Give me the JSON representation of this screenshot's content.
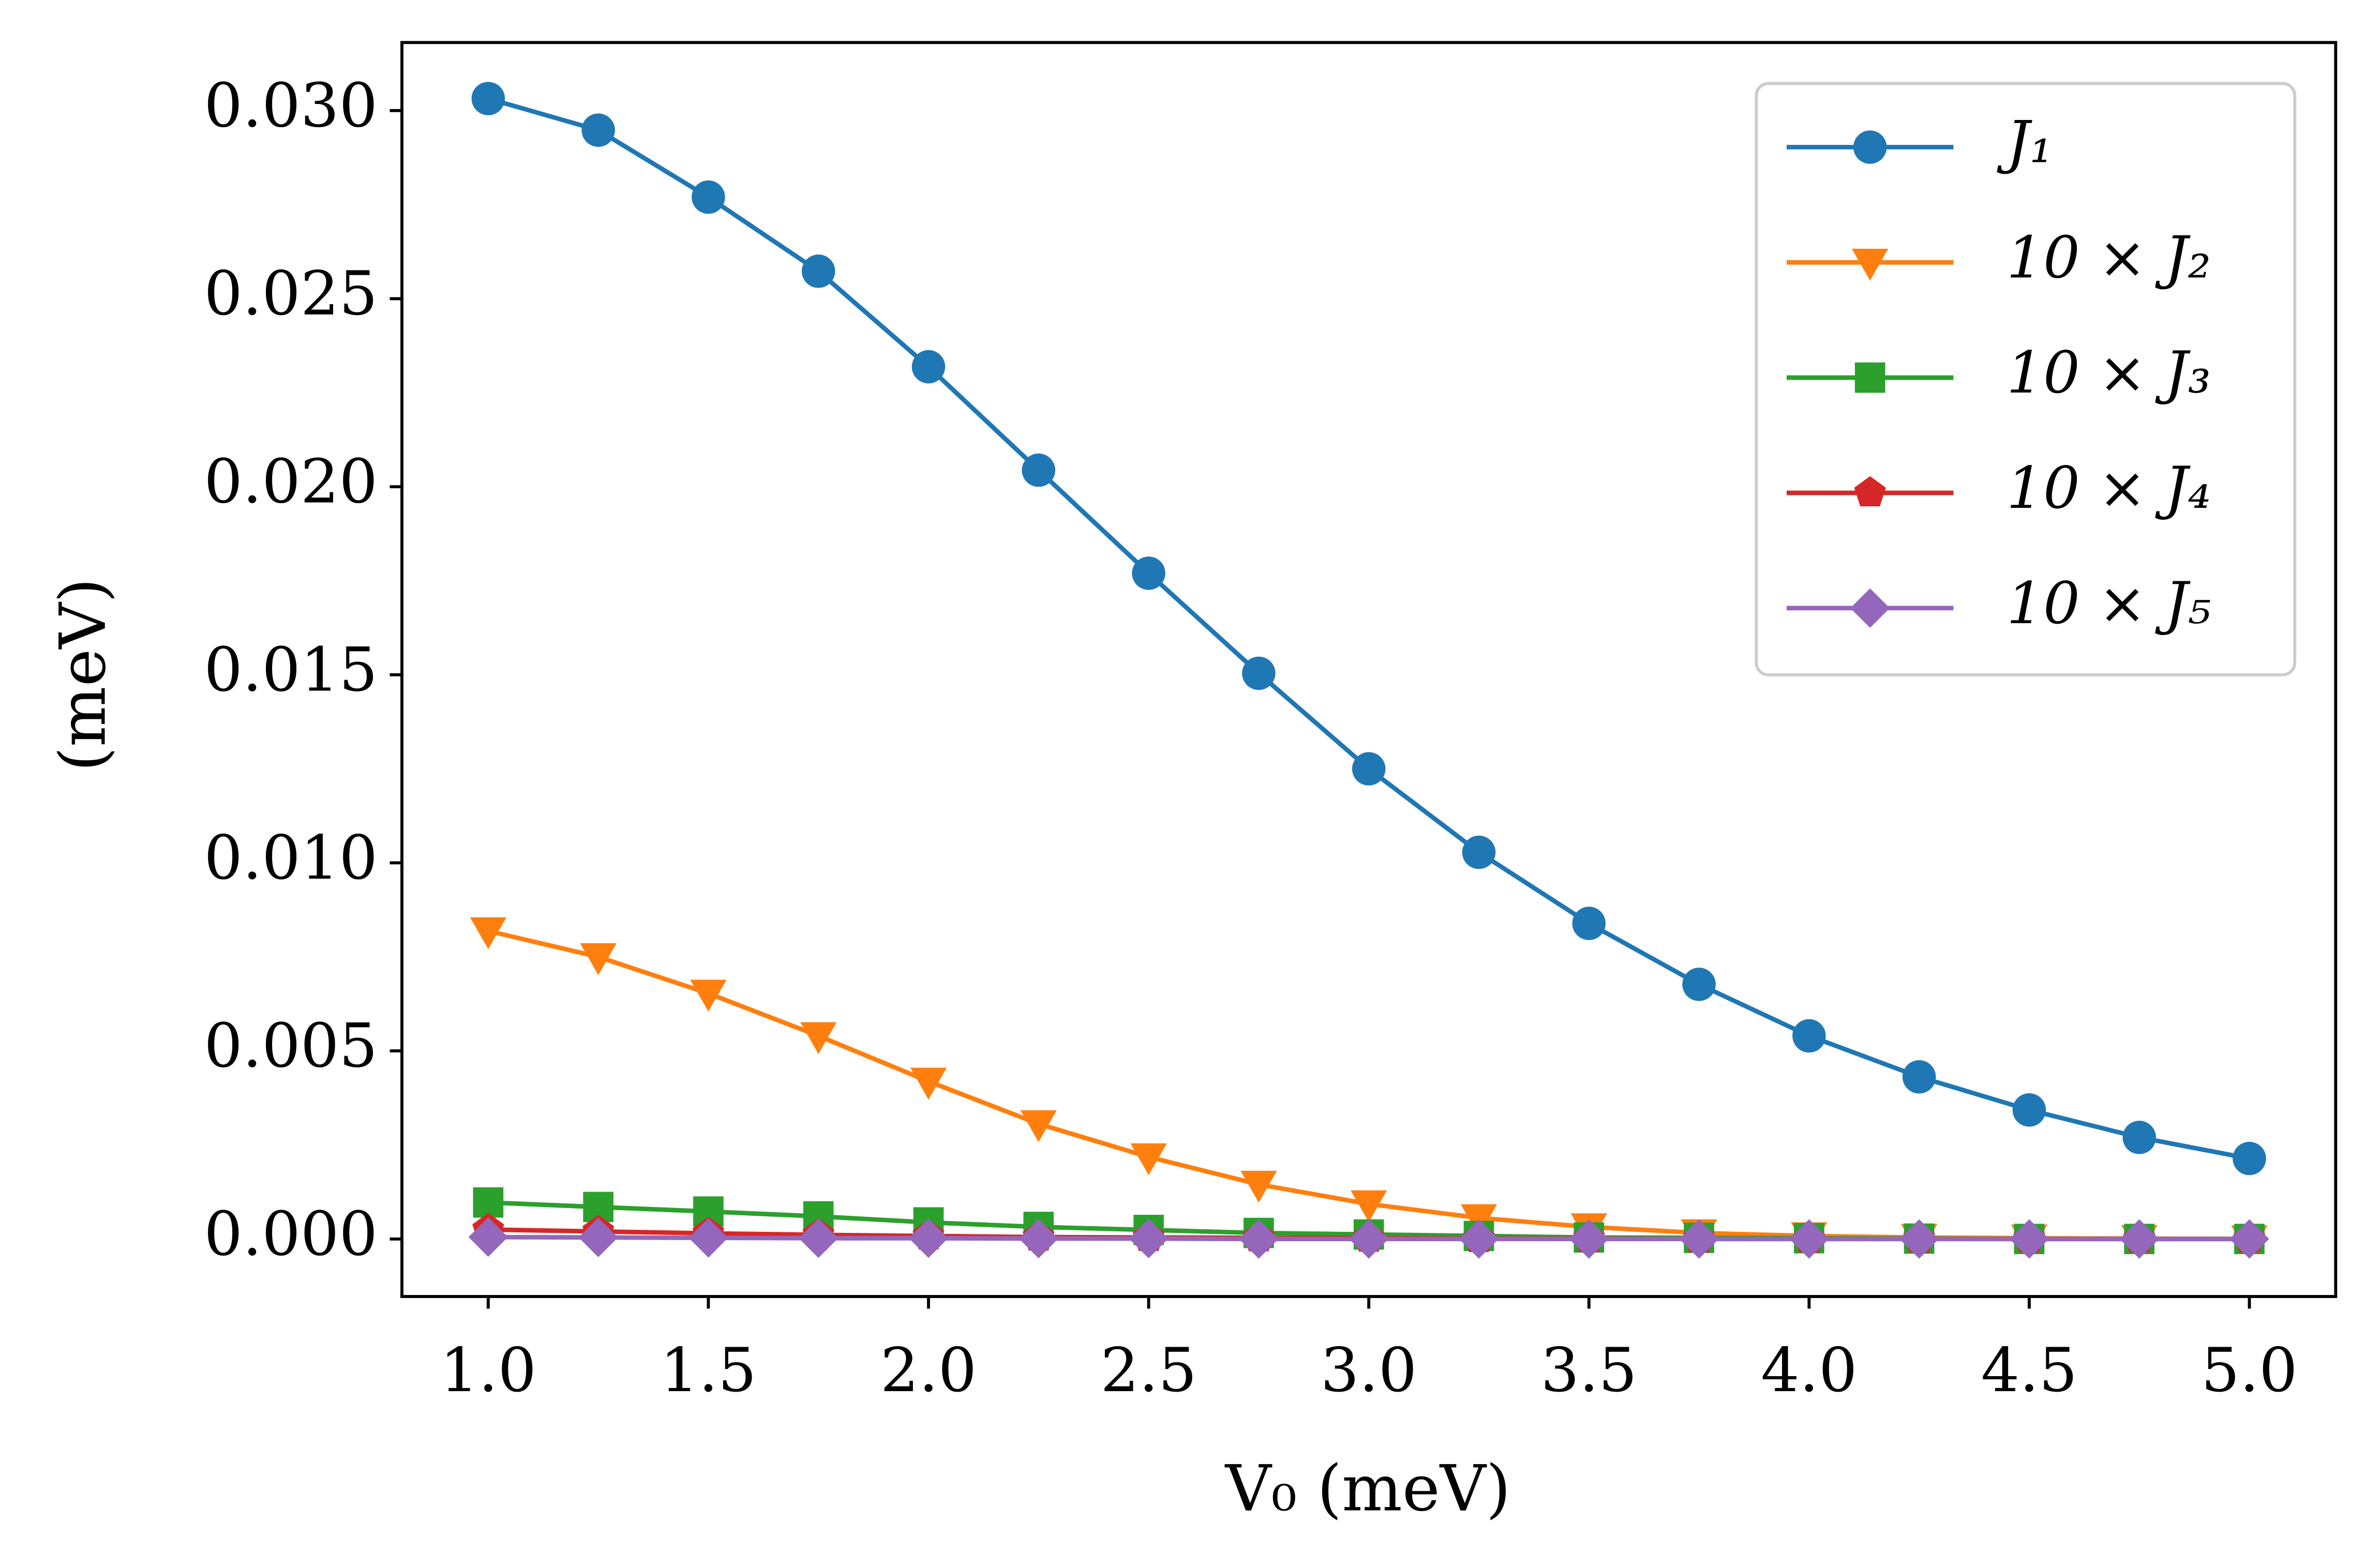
{
  "chart_data": {
    "type": "line",
    "x_label": "V₀ (meV)",
    "y_label": "(meV)",
    "x": [
      1.0,
      1.25,
      1.5,
      1.75,
      2.0,
      2.25,
      2.5,
      2.75,
      3.0,
      3.25,
      3.5,
      3.75,
      4.0,
      4.25,
      4.5,
      4.75,
      5.0
    ],
    "series": [
      {
        "name": "J₁",
        "color": "#1f77b4",
        "marker": "circle",
        "values": [
          0.03032,
          0.02948,
          0.0277,
          0.02573,
          0.02319,
          0.02044,
          0.0177,
          0.01504,
          0.0125,
          0.01028,
          0.00839,
          0.00677,
          0.0054,
          0.00431,
          0.00343,
          0.0027,
          0.00214
        ]
      },
      {
        "name": "10 × J₂",
        "color": "#ff7f0e",
        "marker": "triangle-down",
        "values": [
          0.00819,
          0.0075,
          0.00653,
          0.0054,
          0.00419,
          0.00306,
          0.00218,
          0.00145,
          0.00093,
          0.00056,
          0.00032,
          0.00016,
          8e-05,
          4e-05,
          2e-05,
          1e-05,
          0
        ]
      },
      {
        "name": "10 × J₃",
        "color": "#2ca02c",
        "marker": "square",
        "values": [
          0.00097,
          0.00085,
          0.00073,
          0.0006,
          0.00044,
          0.00032,
          0.00024,
          0.00016,
          0.00012,
          8e-05,
          4e-05,
          3e-05,
          2e-05,
          1e-05,
          0,
          0,
          0
        ]
      },
      {
        "name": "10 × J₄",
        "color": "#d62728",
        "marker": "pentagon",
        "values": [
          0.00025,
          0.0002,
          0.00015,
          0.00011,
          8e-05,
          5e-05,
          4e-05,
          3e-05,
          2e-05,
          1e-05,
          1e-05,
          0,
          0,
          0,
          0,
          0,
          0
        ]
      },
      {
        "name": "10 × J₅",
        "color": "#9467bd",
        "marker": "diamond",
        "values": [
          5e-05,
          4e-05,
          3e-05,
          2e-05,
          2e-05,
          1e-05,
          1e-05,
          0,
          0,
          0,
          0,
          0,
          0,
          0,
          0,
          0,
          0
        ]
      }
    ],
    "xlim": [
      0.804,
      5.196
    ],
    "ylim": [
      -0.00153,
      0.03181
    ],
    "xticks": [
      {
        "value": 1.0,
        "label": "1.0"
      },
      {
        "value": 1.5,
        "label": "1.5"
      },
      {
        "value": 2.0,
        "label": "2.0"
      },
      {
        "value": 2.5,
        "label": "2.5"
      },
      {
        "value": 3.0,
        "label": "3.0"
      },
      {
        "value": 3.5,
        "label": "3.5"
      },
      {
        "value": 4.0,
        "label": "4.0"
      },
      {
        "value": 4.5,
        "label": "4.5"
      },
      {
        "value": 5.0,
        "label": "5.0"
      }
    ],
    "yticks": [
      {
        "value": 0,
        "label": "0.000"
      },
      {
        "value": 0.005,
        "label": "0.005"
      },
      {
        "value": 0.01,
        "label": "0.010"
      },
      {
        "value": 0.015,
        "label": "0.015"
      },
      {
        "value": 0.02,
        "label": "0.020"
      },
      {
        "value": 0.025,
        "label": "0.025"
      },
      {
        "value": 0.03,
        "label": "0.030"
      }
    ],
    "legend": "upper right",
    "grid": false
  }
}
